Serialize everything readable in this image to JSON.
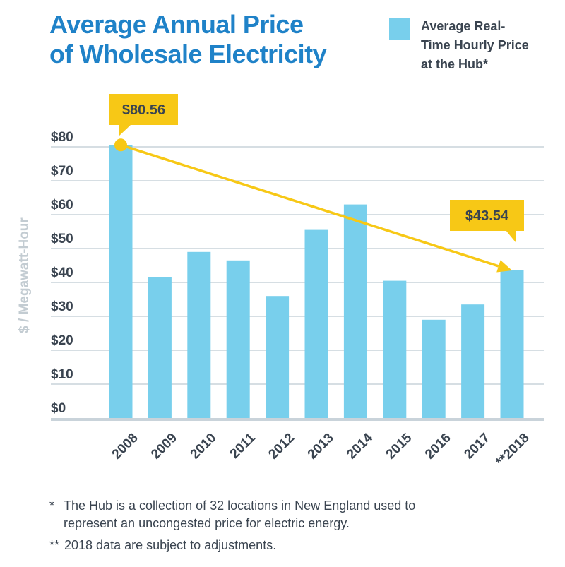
{
  "title_line1": "Average Annual Price",
  "title_line2": "of Wholesale Electricity",
  "legend": {
    "line1": "Average Real-",
    "line2": "Time Hourly Price",
    "line3": "at the Hub*",
    "color": "#78cfec"
  },
  "colors": {
    "title": "#1f82c8",
    "bar": "#78cfec",
    "trend": "#f7c816",
    "grid": "#c9d3da",
    "axis_text": "#3a4450",
    "ylabel": "#c3ccd2"
  },
  "chart_data": {
    "type": "bar",
    "categories": [
      "2008",
      "2009",
      "2010",
      "2011",
      "2012",
      "2013",
      "2014",
      "2015",
      "2016",
      "2017",
      "**2018"
    ],
    "values": [
      80.56,
      41.5,
      49,
      46.5,
      36,
      55.5,
      63,
      40.5,
      29,
      33.5,
      43.54
    ],
    "ylabel": "$ / Megawatt-Hour",
    "ylim": [
      0,
      80
    ],
    "yticks": [
      "$0",
      "$10",
      "$20",
      "$30",
      "$40",
      "$50",
      "$60",
      "$70",
      "$80"
    ],
    "grid": true,
    "legend_position": "top-right",
    "annotations": [
      {
        "label": "$80.56",
        "category_index": 0,
        "value": 80.56
      },
      {
        "label": "$43.54",
        "category_index": 10,
        "value": 43.54
      }
    ],
    "trend": {
      "from_index": 0,
      "to_index": 10
    }
  },
  "footnotes": {
    "note1_mark": "*",
    "note1_line1": "The Hub is a collection of 32 locations in New England used to",
    "note1_line2": "represent an uncongested price for electric energy.",
    "note2_mark": "**",
    "note2_text": "2018 data are subject to adjustments."
  }
}
